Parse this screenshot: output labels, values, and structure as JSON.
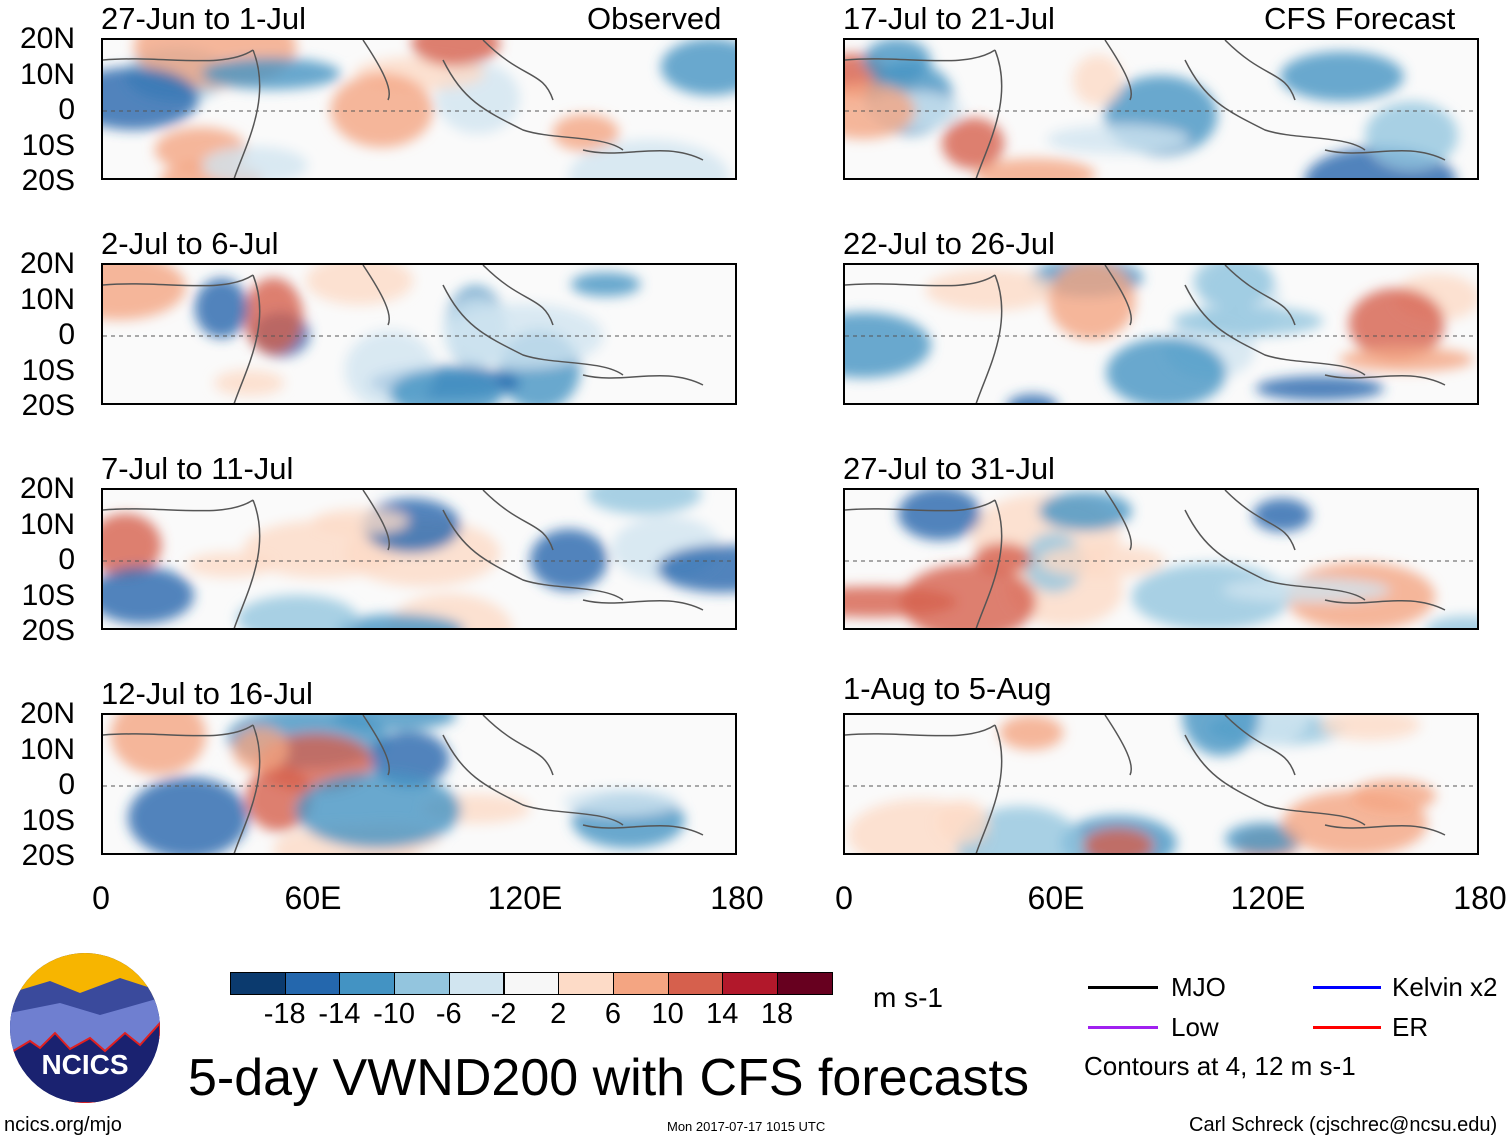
{
  "title": "5-day VWND200 with CFS forecasts",
  "observed_label": "Observed",
  "forecast_label": "CFS Forecast",
  "panels_left": [
    "27-Jun to 1-Jul",
    "2-Jul to 6-Jul",
    "7-Jul to 11-Jul",
    "12-Jul to 16-Jul"
  ],
  "panels_right": [
    "17-Jul to 21-Jul",
    "22-Jul to 26-Jul",
    "27-Jul to 31-Jul",
    "1-Aug to 5-Aug"
  ],
  "lat_ticks": [
    "20N",
    "10N",
    "0",
    "10S",
    "20S"
  ],
  "lon_ticks": [
    "0",
    "60E",
    "120E",
    "180"
  ],
  "colorbar": {
    "labels": [
      "-18",
      "-14",
      "-10",
      "-6",
      "-2",
      "2",
      "6",
      "10",
      "14",
      "18"
    ],
    "colors": [
      "#0b3a6e",
      "#2467ad",
      "#4393c3",
      "#93c5de",
      "#d1e5f0",
      "#f7f7f7",
      "#fddbc7",
      "#f4a582",
      "#d6604d",
      "#b2182b",
      "#67001f"
    ],
    "units": "m s-1"
  },
  "legend": {
    "items": [
      {
        "label": "MJO",
        "color": "#000000"
      },
      {
        "label": "Kelvin x2",
        "color": "#0000ff"
      },
      {
        "label": "Low",
        "color": "#a020f0"
      },
      {
        "label": "ER",
        "color": "#ff0000"
      }
    ],
    "note": "Contours at 4, 12 m s-1"
  },
  "logo_text": "NCICS",
  "footer": {
    "url": "ncics.org/mjo",
    "timestamp": "Mon 2017-07-17 1015 UTC",
    "author": "Carl Schreck (cjschrec@ncsu.edu)"
  }
}
